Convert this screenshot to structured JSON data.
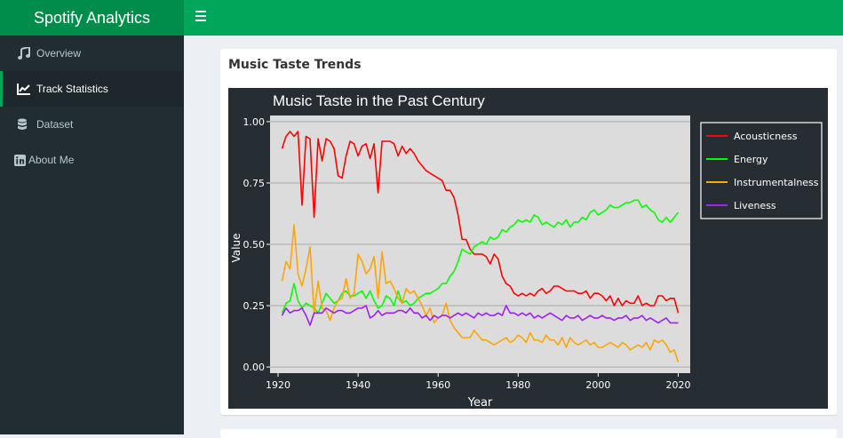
{
  "app": {
    "title": "Spotify Analytics"
  },
  "sidebar": {
    "items": [
      {
        "label": "Overview",
        "icon": "music-icon",
        "active": false
      },
      {
        "label": "Track Statistics",
        "icon": "line-chart-icon",
        "active": true
      },
      {
        "label": "Dataset",
        "icon": "database-icon",
        "active": false
      },
      {
        "label": "About Me",
        "icon": "linkedin-icon",
        "active": false
      }
    ]
  },
  "main": {
    "box_title": "Music Taste Trends"
  },
  "colors": {
    "brand_dark": "#008d4c",
    "brand": "#00a65a",
    "sidebar": "#222d32",
    "plot_bg": "#272e33",
    "panel_bg": "#dcdcdc"
  },
  "chart_data": {
    "type": "line",
    "title": "Music Taste in the Past Century",
    "xlabel": "Year",
    "ylabel": "Value",
    "xlim": [
      1918,
      2023
    ],
    "ylim": [
      -0.025,
      1.025
    ],
    "xticks": [
      1920,
      1940,
      1960,
      1980,
      2000,
      2020
    ],
    "yticks": [
      "0.00",
      "0.25",
      "0.50",
      "0.75",
      "1.00"
    ],
    "legend_position": "right",
    "x": [
      1921,
      1922,
      1923,
      1924,
      1925,
      1926,
      1927,
      1928,
      1929,
      1930,
      1931,
      1932,
      1933,
      1934,
      1935,
      1936,
      1937,
      1938,
      1939,
      1940,
      1941,
      1942,
      1943,
      1944,
      1945,
      1946,
      1947,
      1948,
      1949,
      1950,
      1951,
      1952,
      1953,
      1954,
      1955,
      1956,
      1957,
      1958,
      1959,
      1960,
      1961,
      1962,
      1963,
      1964,
      1965,
      1966,
      1967,
      1968,
      1969,
      1970,
      1971,
      1972,
      1973,
      1974,
      1975,
      1976,
      1977,
      1978,
      1979,
      1980,
      1981,
      1982,
      1983,
      1984,
      1985,
      1986,
      1987,
      1988,
      1989,
      1990,
      1991,
      1992,
      1993,
      1994,
      1995,
      1996,
      1997,
      1998,
      1999,
      2000,
      2001,
      2002,
      2003,
      2004,
      2005,
      2006,
      2007,
      2008,
      2009,
      2010,
      2011,
      2012,
      2013,
      2014,
      2015,
      2016,
      2017,
      2018,
      2019,
      2020
    ],
    "series": [
      {
        "name": "Acousticness",
        "color": "#ff0000",
        "values": [
          0.89,
          0.94,
          0.96,
          0.94,
          0.96,
          0.66,
          0.94,
          0.93,
          0.61,
          0.93,
          0.84,
          0.93,
          0.92,
          0.89,
          0.78,
          0.77,
          0.86,
          0.92,
          0.91,
          0.86,
          0.9,
          0.91,
          0.85,
          0.91,
          0.71,
          0.92,
          0.92,
          0.92,
          0.91,
          0.86,
          0.9,
          0.87,
          0.89,
          0.87,
          0.84,
          0.82,
          0.8,
          0.79,
          0.78,
          0.77,
          0.76,
          0.72,
          0.72,
          0.69,
          0.62,
          0.52,
          0.52,
          0.48,
          0.46,
          0.46,
          0.46,
          0.45,
          0.42,
          0.46,
          0.44,
          0.37,
          0.34,
          0.33,
          0.3,
          0.29,
          0.3,
          0.29,
          0.3,
          0.29,
          0.31,
          0.32,
          0.3,
          0.31,
          0.33,
          0.33,
          0.32,
          0.31,
          0.31,
          0.31,
          0.3,
          0.3,
          0.31,
          0.28,
          0.3,
          0.3,
          0.29,
          0.27,
          0.29,
          0.25,
          0.28,
          0.25,
          0.27,
          0.26,
          0.26,
          0.29,
          0.25,
          0.26,
          0.25,
          0.25,
          0.29,
          0.29,
          0.27,
          0.28,
          0.28,
          0.22
        ]
      },
      {
        "name": "Energy",
        "color": "#00ff00",
        "values": [
          0.22,
          0.26,
          0.27,
          0.34,
          0.27,
          0.24,
          0.26,
          0.25,
          0.24,
          0.22,
          0.26,
          0.3,
          0.28,
          0.26,
          0.27,
          0.3,
          0.31,
          0.29,
          0.29,
          0.3,
          0.31,
          0.28,
          0.31,
          0.27,
          0.24,
          0.25,
          0.29,
          0.28,
          0.25,
          0.31,
          0.26,
          0.27,
          0.25,
          0.26,
          0.28,
          0.29,
          0.3,
          0.3,
          0.31,
          0.32,
          0.34,
          0.34,
          0.37,
          0.39,
          0.43,
          0.48,
          0.47,
          0.46,
          0.49,
          0.5,
          0.51,
          0.5,
          0.53,
          0.52,
          0.53,
          0.56,
          0.55,
          0.57,
          0.58,
          0.6,
          0.59,
          0.6,
          0.59,
          0.62,
          0.61,
          0.58,
          0.59,
          0.58,
          0.57,
          0.59,
          0.58,
          0.6,
          0.57,
          0.59,
          0.59,
          0.61,
          0.6,
          0.63,
          0.64,
          0.62,
          0.63,
          0.64,
          0.66,
          0.65,
          0.65,
          0.66,
          0.67,
          0.67,
          0.68,
          0.68,
          0.65,
          0.66,
          0.64,
          0.63,
          0.6,
          0.59,
          0.61,
          0.59,
          0.61,
          0.63
        ]
      },
      {
        "name": "Instrumentalness",
        "color": "#ffa500",
        "values": [
          0.35,
          0.43,
          0.4,
          0.58,
          0.38,
          0.33,
          0.4,
          0.49,
          0.22,
          0.35,
          0.24,
          0.23,
          0.19,
          0.24,
          0.27,
          0.28,
          0.36,
          0.28,
          0.3,
          0.46,
          0.43,
          0.38,
          0.4,
          0.45,
          0.28,
          0.47,
          0.34,
          0.35,
          0.32,
          0.28,
          0.26,
          0.32,
          0.3,
          0.31,
          0.28,
          0.25,
          0.21,
          0.24,
          0.18,
          0.2,
          0.21,
          0.26,
          0.19,
          0.16,
          0.14,
          0.12,
          0.12,
          0.12,
          0.15,
          0.13,
          0.11,
          0.11,
          0.1,
          0.09,
          0.1,
          0.11,
          0.12,
          0.1,
          0.11,
          0.13,
          0.12,
          0.1,
          0.14,
          0.11,
          0.11,
          0.1,
          0.13,
          0.11,
          0.11,
          0.09,
          0.12,
          0.08,
          0.12,
          0.1,
          0.09,
          0.1,
          0.11,
          0.09,
          0.1,
          0.08,
          0.08,
          0.09,
          0.1,
          0.09,
          0.08,
          0.1,
          0.09,
          0.07,
          0.08,
          0.09,
          0.08,
          0.1,
          0.07,
          0.11,
          0.1,
          0.11,
          0.09,
          0.06,
          0.07,
          0.02
        ]
      },
      {
        "name": "Liveness",
        "color": "#a020f0",
        "values": [
          0.21,
          0.24,
          0.22,
          0.23,
          0.23,
          0.24,
          0.21,
          0.17,
          0.22,
          0.22,
          0.22,
          0.24,
          0.23,
          0.22,
          0.23,
          0.23,
          0.22,
          0.22,
          0.23,
          0.24,
          0.24,
          0.25,
          0.2,
          0.21,
          0.23,
          0.21,
          0.22,
          0.22,
          0.22,
          0.23,
          0.23,
          0.22,
          0.24,
          0.22,
          0.22,
          0.2,
          0.21,
          0.19,
          0.21,
          0.2,
          0.21,
          0.21,
          0.2,
          0.21,
          0.22,
          0.21,
          0.22,
          0.21,
          0.2,
          0.22,
          0.21,
          0.22,
          0.21,
          0.21,
          0.22,
          0.21,
          0.25,
          0.22,
          0.22,
          0.21,
          0.22,
          0.21,
          0.22,
          0.2,
          0.21,
          0.2,
          0.21,
          0.22,
          0.21,
          0.2,
          0.19,
          0.21,
          0.2,
          0.2,
          0.21,
          0.19,
          0.2,
          0.21,
          0.2,
          0.2,
          0.21,
          0.2,
          0.2,
          0.19,
          0.2,
          0.2,
          0.21,
          0.19,
          0.2,
          0.2,
          0.21,
          0.19,
          0.2,
          0.19,
          0.18,
          0.19,
          0.2,
          0.18,
          0.18,
          0.18
        ]
      }
    ]
  }
}
